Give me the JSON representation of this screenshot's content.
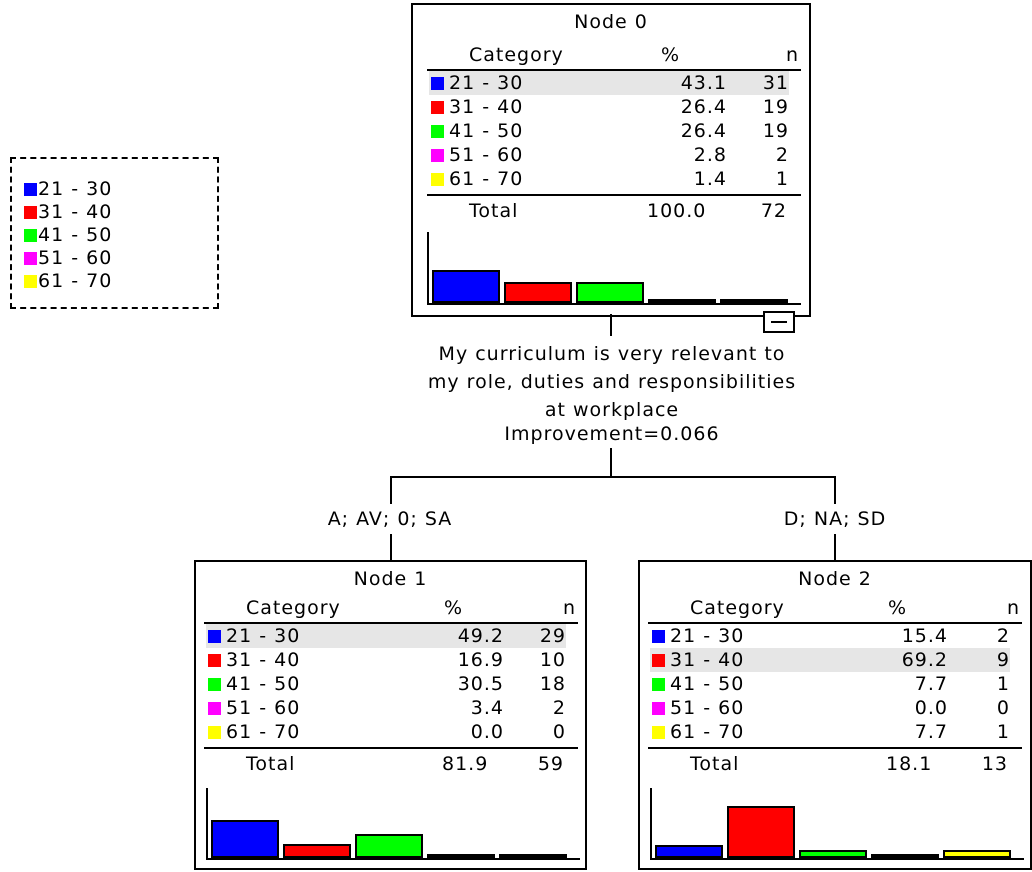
{
  "legend": {
    "items": [
      {
        "label": "21 - 30",
        "color": "#0000ff"
      },
      {
        "label": "31 - 40",
        "color": "#ff0000"
      },
      {
        "label": "41 - 50",
        "color": "#00ff00"
      },
      {
        "label": "51 - 60",
        "color": "#ff00ff"
      },
      {
        "label": "61 - 70",
        "color": "#ffff00"
      }
    ]
  },
  "nodes": [
    {
      "title": "Node 0",
      "header": {
        "category": "Category",
        "percent": "%",
        "n": "n"
      },
      "rows": [
        {
          "category": "21 - 30",
          "percent": "43.1",
          "n": "31",
          "color": "#0000ff",
          "highlight": true
        },
        {
          "category": "31 - 40",
          "percent": "26.4",
          "n": "19",
          "color": "#ff0000"
        },
        {
          "category": "41 - 50",
          "percent": "26.4",
          "n": "19",
          "color": "#00ff00"
        },
        {
          "category": "51 - 60",
          "percent": "2.8",
          "n": "2",
          "color": "#ff00ff"
        },
        {
          "category": "61 - 70",
          "percent": "1.4",
          "n": "1",
          "color": "#ffff00"
        }
      ],
      "total": {
        "label": "Total",
        "percent": "100.0",
        "n": "72"
      }
    },
    {
      "title": "Node 1",
      "header": {
        "category": "Category",
        "percent": "%",
        "n": "n"
      },
      "rows": [
        {
          "category": "21 - 30",
          "percent": "49.2",
          "n": "29",
          "color": "#0000ff",
          "highlight": true
        },
        {
          "category": "31 - 40",
          "percent": "16.9",
          "n": "10",
          "color": "#ff0000"
        },
        {
          "category": "41 - 50",
          "percent": "30.5",
          "n": "18",
          "color": "#00ff00"
        },
        {
          "category": "51 - 60",
          "percent": "3.4",
          "n": "2",
          "color": "#ff00ff"
        },
        {
          "category": "61 - 70",
          "percent": "0.0",
          "n": "0",
          "color": "#ffff00"
        }
      ],
      "total": {
        "label": "Total",
        "percent": "81.9",
        "n": "59"
      }
    },
    {
      "title": "Node 2",
      "header": {
        "category": "Category",
        "percent": "%",
        "n": "n"
      },
      "rows": [
        {
          "category": "21 - 30",
          "percent": "15.4",
          "n": "2",
          "color": "#0000ff"
        },
        {
          "category": "31 - 40",
          "percent": "69.2",
          "n": "9",
          "color": "#ff0000",
          "highlight": true
        },
        {
          "category": "41 - 50",
          "percent": "7.7",
          "n": "1",
          "color": "#00ff00"
        },
        {
          "category": "51 - 60",
          "percent": "0.0",
          "n": "0",
          "color": "#ff00ff"
        },
        {
          "category": "61 - 70",
          "percent": "7.7",
          "n": "1",
          "color": "#ffff00"
        }
      ],
      "total": {
        "label": "Total",
        "percent": "18.1",
        "n": "13"
      }
    }
  ],
  "split": {
    "question_line1": "My curriculum is very relevant to",
    "question_line2": "my role, duties and responsibilities",
    "question_line3": "at workplace",
    "improvement": "Improvement=0.066",
    "left_branch": "A; AV; 0; SA",
    "right_branch": "D; NA; SD"
  },
  "collapse_icon": "minus-icon"
}
